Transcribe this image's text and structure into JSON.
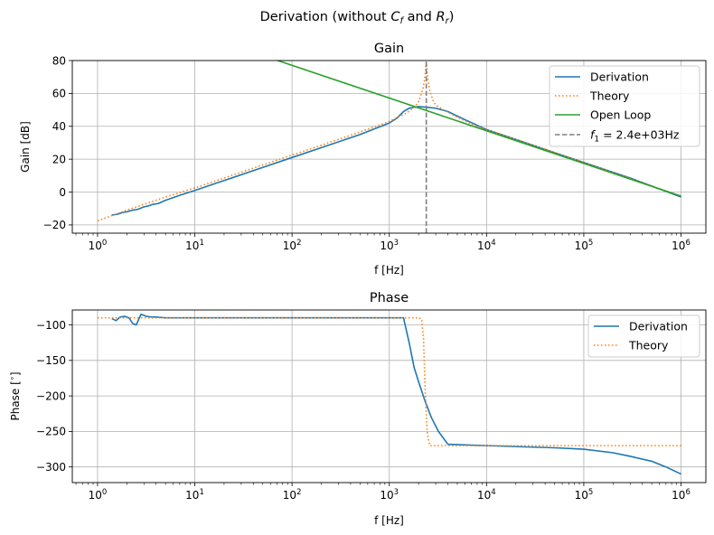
{
  "figure": {
    "suptitle_prefix": "Derivation (without ",
    "suptitle_cf": "C",
    "suptitle_cf_sub": "f",
    "suptitle_and": " and ",
    "suptitle_rr": "R",
    "suptitle_rr_sub": "r",
    "suptitle_suffix": ")"
  },
  "colors": {
    "derivation": "#1f77b4",
    "theory": "#ff7f0e",
    "open_loop": "#2ca02c",
    "f1_line": "#7f7f7f",
    "grid": "#b0b0b0"
  },
  "chart_data": [
    {
      "type": "line",
      "title": "Gain",
      "xlabel": "f [Hz]",
      "ylabel": "Gain [dB]",
      "xscale": "log",
      "xlim": [
        0.55,
        1800000
      ],
      "ylim": [
        -25,
        80
      ],
      "xticks": [
        {
          "value": 1,
          "base": "10",
          "exp": "0"
        },
        {
          "value": 10,
          "base": "10",
          "exp": "1"
        },
        {
          "value": 100,
          "base": "10",
          "exp": "2"
        },
        {
          "value": 1000,
          "base": "10",
          "exp": "3"
        },
        {
          "value": 10000,
          "base": "10",
          "exp": "4"
        },
        {
          "value": 100000,
          "base": "10",
          "exp": "5"
        },
        {
          "value": 1000000,
          "base": "10",
          "exp": "6"
        }
      ],
      "yticks": [
        {
          "value": -20,
          "label": "−20"
        },
        {
          "value": 0,
          "label": "0"
        },
        {
          "value": 20,
          "label": "20"
        },
        {
          "value": 40,
          "label": "40"
        },
        {
          "value": 60,
          "label": "60"
        },
        {
          "value": 80,
          "label": "80"
        }
      ],
      "grid": true,
      "legend_position": "top-right",
      "series": [
        {
          "name": "Derivation",
          "style": "solid",
          "color": "#1f77b4",
          "x": [
            1.4,
            1.6,
            1.8,
            2,
            2.3,
            2.6,
            3,
            3.3,
            3.7,
            4.2,
            5,
            7,
            10,
            20,
            50,
            100,
            200,
            500,
            1000,
            1200,
            1400,
            1600,
            2000,
            2500,
            3000,
            4000,
            6000,
            10000,
            20000,
            50000,
            100000,
            300000,
            1000000
          ],
          "y": [
            -14,
            -13.5,
            -12.5,
            -12,
            -11,
            -10.5,
            -9,
            -8.5,
            -7.5,
            -7,
            -5,
            -2,
            1,
            7,
            15,
            21,
            27,
            35,
            42,
            45,
            49,
            51,
            52,
            51.5,
            51,
            49,
            44,
            38,
            32,
            24,
            18,
            8.5,
            -3
          ]
        },
        {
          "name": "Theory",
          "style": "dotted",
          "color": "#ff7f0e",
          "x": [
            1,
            2,
            5,
            10,
            20,
            50,
            100,
            200,
            500,
            1000,
            1500,
            1800,
            2000,
            2200,
            2300,
            2400,
            2500,
            2600,
            2800,
            3000,
            3500,
            4000,
            5000,
            7000,
            10000,
            20000,
            100000,
            1000000
          ],
          "y": [
            -17.5,
            -11,
            -3,
            2.5,
            8.5,
            16.5,
            22.5,
            28.5,
            36.5,
            43,
            48,
            51.5,
            55,
            62,
            68,
            79,
            68,
            62,
            56,
            53,
            50.5,
            48.5,
            45.5,
            41.5,
            38,
            32,
            18,
            -2.5
          ]
        },
        {
          "name": "Open Loop",
          "style": "solid",
          "color": "#2ca02c",
          "x": [
            60,
            1000000
          ],
          "y": [
            81.5,
            -2.5
          ]
        },
        {
          "name": "f1_line",
          "style": "dashed",
          "color": "#7f7f7f",
          "x": [
            2400,
            2400
          ],
          "y": [
            -25,
            80
          ]
        }
      ],
      "legend": [
        {
          "label": "Derivation",
          "style": "solid",
          "color": "#1f77b4"
        },
        {
          "label": "Theory",
          "style": "dotted",
          "color": "#ff7f0e"
        },
        {
          "label": "Open Loop",
          "style": "solid",
          "color": "#2ca02c"
        },
        {
          "label_main": "f",
          "label_sub": "1",
          "label_rest": " =  2.4e+03Hz",
          "style": "dashed",
          "color": "#7f7f7f"
        }
      ]
    },
    {
      "type": "line",
      "title": "Phase",
      "xlabel": "f [Hz]",
      "ylabel_prefix": "Phase [",
      "ylabel_sup": "∘",
      "ylabel_suffix": "]",
      "xscale": "log",
      "xlim": [
        0.55,
        1800000
      ],
      "ylim": [
        -322,
        -79
      ],
      "xticks": [
        {
          "value": 1,
          "base": "10",
          "exp": "0"
        },
        {
          "value": 10,
          "base": "10",
          "exp": "1"
        },
        {
          "value": 100,
          "base": "10",
          "exp": "2"
        },
        {
          "value": 1000,
          "base": "10",
          "exp": "3"
        },
        {
          "value": 10000,
          "base": "10",
          "exp": "4"
        },
        {
          "value": 100000,
          "base": "10",
          "exp": "5"
        },
        {
          "value": 1000000,
          "base": "10",
          "exp": "6"
        }
      ],
      "yticks": [
        {
          "value": -100,
          "label": "−100"
        },
        {
          "value": -150,
          "label": "−150"
        },
        {
          "value": -200,
          "label": "−200"
        },
        {
          "value": -250,
          "label": "−250"
        },
        {
          "value": -300,
          "label": "−300"
        }
      ],
      "grid": true,
      "legend_position": "top-right",
      "series": [
        {
          "name": "Derivation",
          "style": "solid",
          "color": "#1f77b4",
          "x": [
            1.4,
            1.55,
            1.7,
            1.9,
            2.1,
            2.3,
            2.5,
            2.8,
            3.2,
            3.6,
            4,
            5,
            7,
            10,
            100,
            1000,
            1400,
            1600,
            1800,
            2000,
            2300,
            2700,
            3200,
            4000,
            10000,
            50000,
            100000,
            200000,
            300000,
            500000,
            700000,
            1000000
          ],
          "y": [
            -91,
            -94,
            -89,
            -88,
            -90,
            -98,
            -100,
            -85,
            -88,
            -89,
            -89,
            -90,
            -90,
            -90,
            -90,
            -90,
            -90,
            -125,
            -160,
            -180,
            -205,
            -230,
            -250,
            -268,
            -270,
            -273,
            -275,
            -280,
            -285,
            -292,
            -300,
            -310
          ]
        },
        {
          "name": "Theory",
          "style": "dotted",
          "color": "#ff7f0e",
          "x": [
            1,
            2000,
            2150,
            2250,
            2350,
            2450,
            2600,
            1000000
          ],
          "y": [
            -90,
            -90,
            -92,
            -120,
            -200,
            -250,
            -270,
            -270
          ]
        }
      ],
      "legend": [
        {
          "label": "Derivation",
          "style": "solid",
          "color": "#1f77b4"
        },
        {
          "label": "Theory",
          "style": "dotted",
          "color": "#ff7f0e"
        }
      ]
    }
  ]
}
